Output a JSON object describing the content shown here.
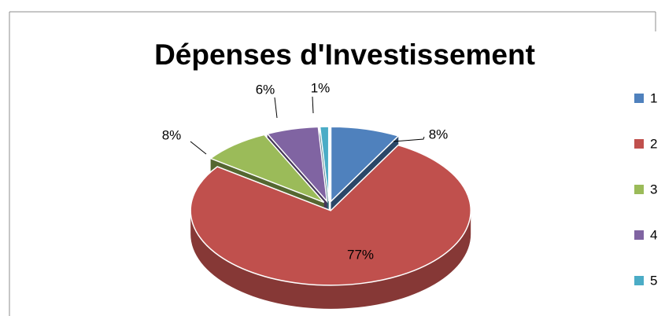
{
  "chart_data": {
    "type": "pie",
    "title": "Dépenses d'Investissement",
    "categories": [
      "1",
      "2",
      "3",
      "4",
      "5"
    ],
    "values": [
      8,
      77,
      8,
      6,
      1
    ],
    "value_labels": [
      "8%",
      "77%",
      "8%",
      "6%",
      "1%"
    ],
    "colors": [
      "#4f81bd",
      "#c0504d",
      "#9bbb59",
      "#8064a2",
      "#4bacc6"
    ],
    "legend": "right"
  }
}
